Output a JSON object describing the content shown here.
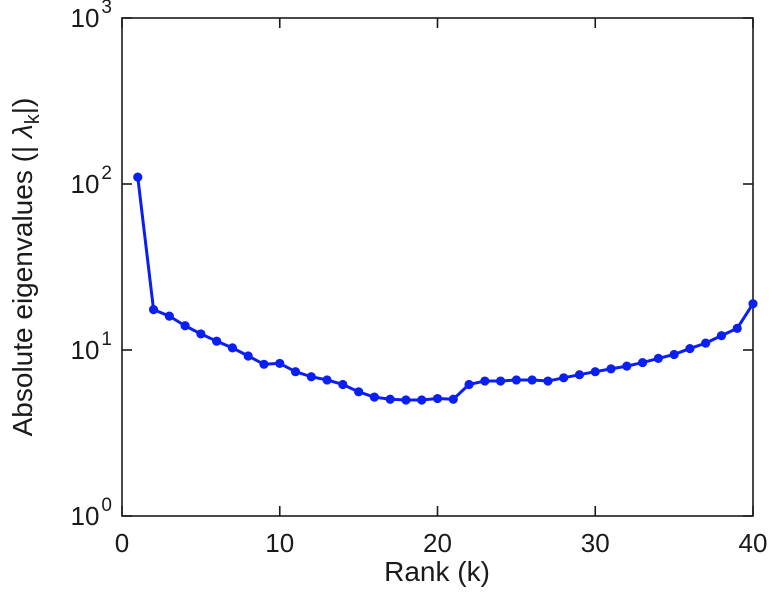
{
  "figure": {
    "background_color": "#ffffff",
    "axis_color": "#1a1a1a"
  },
  "chart_data": {
    "type": "line",
    "title": "",
    "xlabel": "Rank (k)",
    "ylabel": "Absolute eigenvalues (| λk |)",
    "ylabel_parts": {
      "prefix": "Absolute eigenvalues (| ",
      "symbol": "λ",
      "subscript": "k",
      "suffix": "|)"
    },
    "y_scale": "log",
    "xlim": [
      0,
      40
    ],
    "ylim_exponents": [
      0,
      3
    ],
    "x_ticks": [
      0,
      10,
      20,
      30,
      40
    ],
    "y_tick_exponents": [
      0,
      1,
      2,
      3
    ],
    "legend": "none",
    "grid": "off",
    "line_color": "#0b1ff0",
    "marker": "circle",
    "x": [
      1,
      2,
      3,
      4,
      5,
      6,
      7,
      8,
      9,
      10,
      11,
      12,
      13,
      14,
      15,
      16,
      17,
      18,
      19,
      20,
      21,
      22,
      23,
      24,
      25,
      26,
      27,
      28,
      29,
      30,
      31,
      32,
      33,
      34,
      35,
      36,
      37,
      38,
      39,
      40
    ],
    "values": [
      110,
      17.5,
      16,
      14,
      12.5,
      11.3,
      10.3,
      9.2,
      8.2,
      8.3,
      7.4,
      6.9,
      6.6,
      6.2,
      5.6,
      5.2,
      5.05,
      5.0,
      5.0,
      5.1,
      5.05,
      6.2,
      6.5,
      6.5,
      6.6,
      6.6,
      6.5,
      6.8,
      7.1,
      7.4,
      7.7,
      8.0,
      8.4,
      8.9,
      9.4,
      10.2,
      11.0,
      12.2,
      13.5,
      19
    ]
  }
}
